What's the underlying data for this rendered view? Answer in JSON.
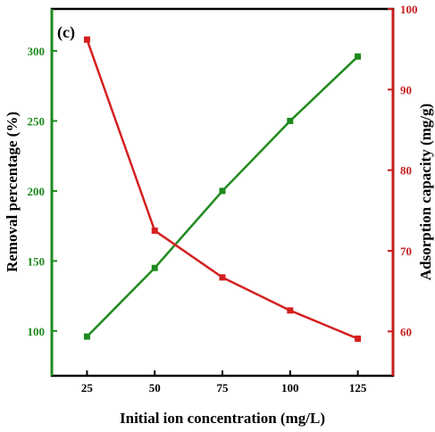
{
  "chart_data": {
    "type": "line",
    "panel_label": "(c)",
    "xlabel": "Initial ion concentration (mg/L)",
    "ylabel_left": "Removal percentage (%)",
    "ylabel_right": "Adsorption capacity  (mg/g)",
    "x": [
      25,
      50,
      75,
      100,
      125
    ],
    "x_ticks": [
      "25",
      "50",
      "75",
      "100",
      "125"
    ],
    "xlim": [
      12,
      138
    ],
    "ylim_left": [
      68,
      330
    ],
    "yticks_left": [
      "100",
      "150",
      "200",
      "250",
      "300"
    ],
    "ylim_right": [
      54.5,
      100
    ],
    "yticks_right": [
      "60",
      "70",
      "80",
      "90",
      "100"
    ],
    "grid": false,
    "legend": "none",
    "colors": {
      "left_axis": "#1e8a1e",
      "right_axis": "#c81e1e",
      "frame": "#000000"
    },
    "series": [
      {
        "axis": "left",
        "color": "#1e8a1e",
        "marker": "square",
        "values": [
          96,
          145,
          200,
          250,
          296
        ]
      },
      {
        "axis": "right",
        "color": "#d42020",
        "marker": "square",
        "values": [
          96.2,
          72.5,
          66.7,
          62.6,
          59.1
        ]
      }
    ]
  }
}
